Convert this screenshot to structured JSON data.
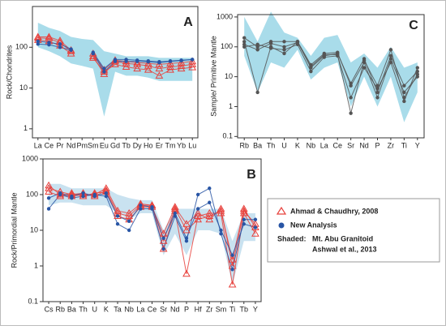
{
  "chart_data": [
    {
      "type": "spider",
      "title": "A",
      "y_label": "Rock/Chondrites",
      "log_y": true,
      "categories": [
        "La",
        "Ce",
        "Pr",
        "Nd",
        "Pm",
        "Sm",
        "Eu",
        "Gd",
        "Tb",
        "Dy",
        "Ho",
        "Er",
        "Tm",
        "Yb",
        "Lu"
      ],
      "ylim": [
        0.6,
        1000
      ],
      "yticks": [
        1,
        10,
        100
      ],
      "shaded": {
        "color": "#a9dcea",
        "high": [
          400,
          300,
          250,
          180,
          160,
          150,
          80,
          70,
          60,
          60,
          60,
          55,
          55,
          55,
          55
        ],
        "low": [
          100,
          80,
          60,
          40,
          35,
          30,
          2,
          25,
          20,
          20,
          18,
          15,
          15,
          15,
          15
        ]
      },
      "series": [
        {
          "name": "Ahmad & Chaudhry, 2008",
          "color": "#e8413c",
          "marker": "triangle",
          "lines": [
            [
              170,
              165,
              130,
              80,
              null,
              60,
              22,
              45,
              40,
              38,
              35,
              30,
              33,
              35,
              38
            ],
            [
              150,
              140,
              110,
              70,
              null,
              55,
              25,
              38,
              33,
              30,
              28,
              20,
              28,
              30,
              32
            ],
            [
              180,
              180,
              145,
              85,
              null,
              70,
              28,
              48,
              45,
              42,
              40,
              38,
              40,
              42,
              45
            ]
          ]
        },
        {
          "name": "New Analysis",
          "color": "#2855a5",
          "marker": "dot",
          "lines": [
            [
              140,
              130,
              120,
              90,
              null,
              75,
              30,
              50,
              50,
              48,
              46,
              44,
              46,
              48,
              50
            ],
            [
              120,
              115,
              100,
              85,
              null,
              70,
              25,
              45,
              45,
              45,
              44,
              42,
              45,
              47,
              50
            ]
          ]
        }
      ]
    },
    {
      "type": "spider",
      "title": "B",
      "y_label": "Rock/Primordial Mantle",
      "log_y": true,
      "categories": [
        "Cs",
        "Rb",
        "Ba",
        "Th",
        "U",
        "K",
        "Ta",
        "Nb",
        "La",
        "Ce",
        "Sr",
        "Nd",
        "P",
        "Hf",
        "Zr",
        "Sm",
        "Ti",
        "Tb",
        "Y"
      ],
      "ylim": [
        0.1,
        1000
      ],
      "yticks": [
        0.1,
        1,
        10,
        100,
        1000
      ],
      "shaded": {
        "color": "#c9e2f0",
        "label": [
          "Shaded:",
          "Mt. Abu Granitoid",
          "Ashwal et al., 2013"
        ],
        "high": [
          200,
          200,
          150,
          150,
          150,
          150,
          100,
          80,
          70,
          70,
          10,
          40,
          40,
          40,
          40,
          40,
          5,
          30,
          30
        ],
        "low": [
          50,
          60,
          60,
          50,
          50,
          50,
          30,
          20,
          30,
          30,
          2,
          8,
          2,
          10,
          10,
          8,
          0.3,
          5,
          5
        ]
      },
      "series": [
        {
          "name": "Ahmad & Chaudhry, 2008",
          "color": "#e8413c",
          "marker": "triangle",
          "lines": [
            [
              150,
              120,
              100,
              110,
              90,
              130,
              30,
              25,
              50,
              50,
              5,
              40,
              10,
              20,
              25,
              35,
              1.5,
              40,
              12
            ],
            [
              180,
              100,
              90,
              100,
              100,
              150,
              35,
              30,
              55,
              50,
              3,
              35,
              0.6,
              25,
              30,
              30,
              0.3,
              30,
              8
            ],
            [
              120,
              90,
              110,
              90,
              110,
              120,
              25,
              20,
              45,
              45,
              8,
              45,
              15,
              30,
              20,
              40,
              1,
              35,
              15
            ]
          ]
        },
        {
          "name": "New Analysis",
          "color": "#2855a5",
          "marker": "dot",
          "lines": [
            [
              40,
              100,
              80,
              90,
              100,
              90,
              15,
              10,
              40,
              40,
              3,
              25,
              5,
              100,
              150,
              8,
              0.8,
              20,
              20
            ],
            [
              80,
              110,
              90,
              110,
              90,
              110,
              25,
              18,
              50,
              45,
              6,
              30,
              6,
              40,
              60,
              10,
              2,
              15,
              12
            ]
          ]
        }
      ]
    },
    {
      "type": "spider",
      "title": "C",
      "y_label": "Sample/ Primitive Mantle",
      "log_y": true,
      "categories": [
        "Rb",
        "Ba",
        "Th",
        "U",
        "K",
        "Nb",
        "La",
        "Ce",
        "Sr",
        "Nd",
        "P",
        "Zr",
        "Ti",
        "Y"
      ],
      "ylim": [
        0.09,
        1200
      ],
      "yticks": [
        0.1,
        1,
        10,
        100,
        1000
      ],
      "shaded": {
        "color": "#a9dcea",
        "high": [
          1000,
          150,
          1500,
          300,
          200,
          50,
          200,
          250,
          30,
          60,
          20,
          100,
          20,
          30
        ],
        "low": [
          50,
          3,
          30,
          20,
          80,
          8,
          20,
          30,
          1,
          10,
          1,
          10,
          0.3,
          3
        ]
      },
      "series": [
        {
          "color": "#555555",
          "marker": "dot",
          "lines": [
            [
              150,
              3,
              100,
              60,
              150,
              20,
              50,
              60,
              6,
              40,
              3,
              50,
              5,
              15
            ],
            [
              200,
              100,
              150,
              150,
              150,
              25,
              60,
              65,
              5,
              30,
              2,
              40,
              3,
              10
            ],
            [
              100,
              120,
              90,
              80,
              120,
              15,
              45,
              50,
              2,
              20,
              4,
              30,
              1.5,
              20
            ],
            [
              120,
              80,
              130,
              100,
              140,
              22,
              55,
              55,
              0.6,
              35,
              5,
              80,
              2,
              12
            ]
          ]
        }
      ]
    }
  ]
}
